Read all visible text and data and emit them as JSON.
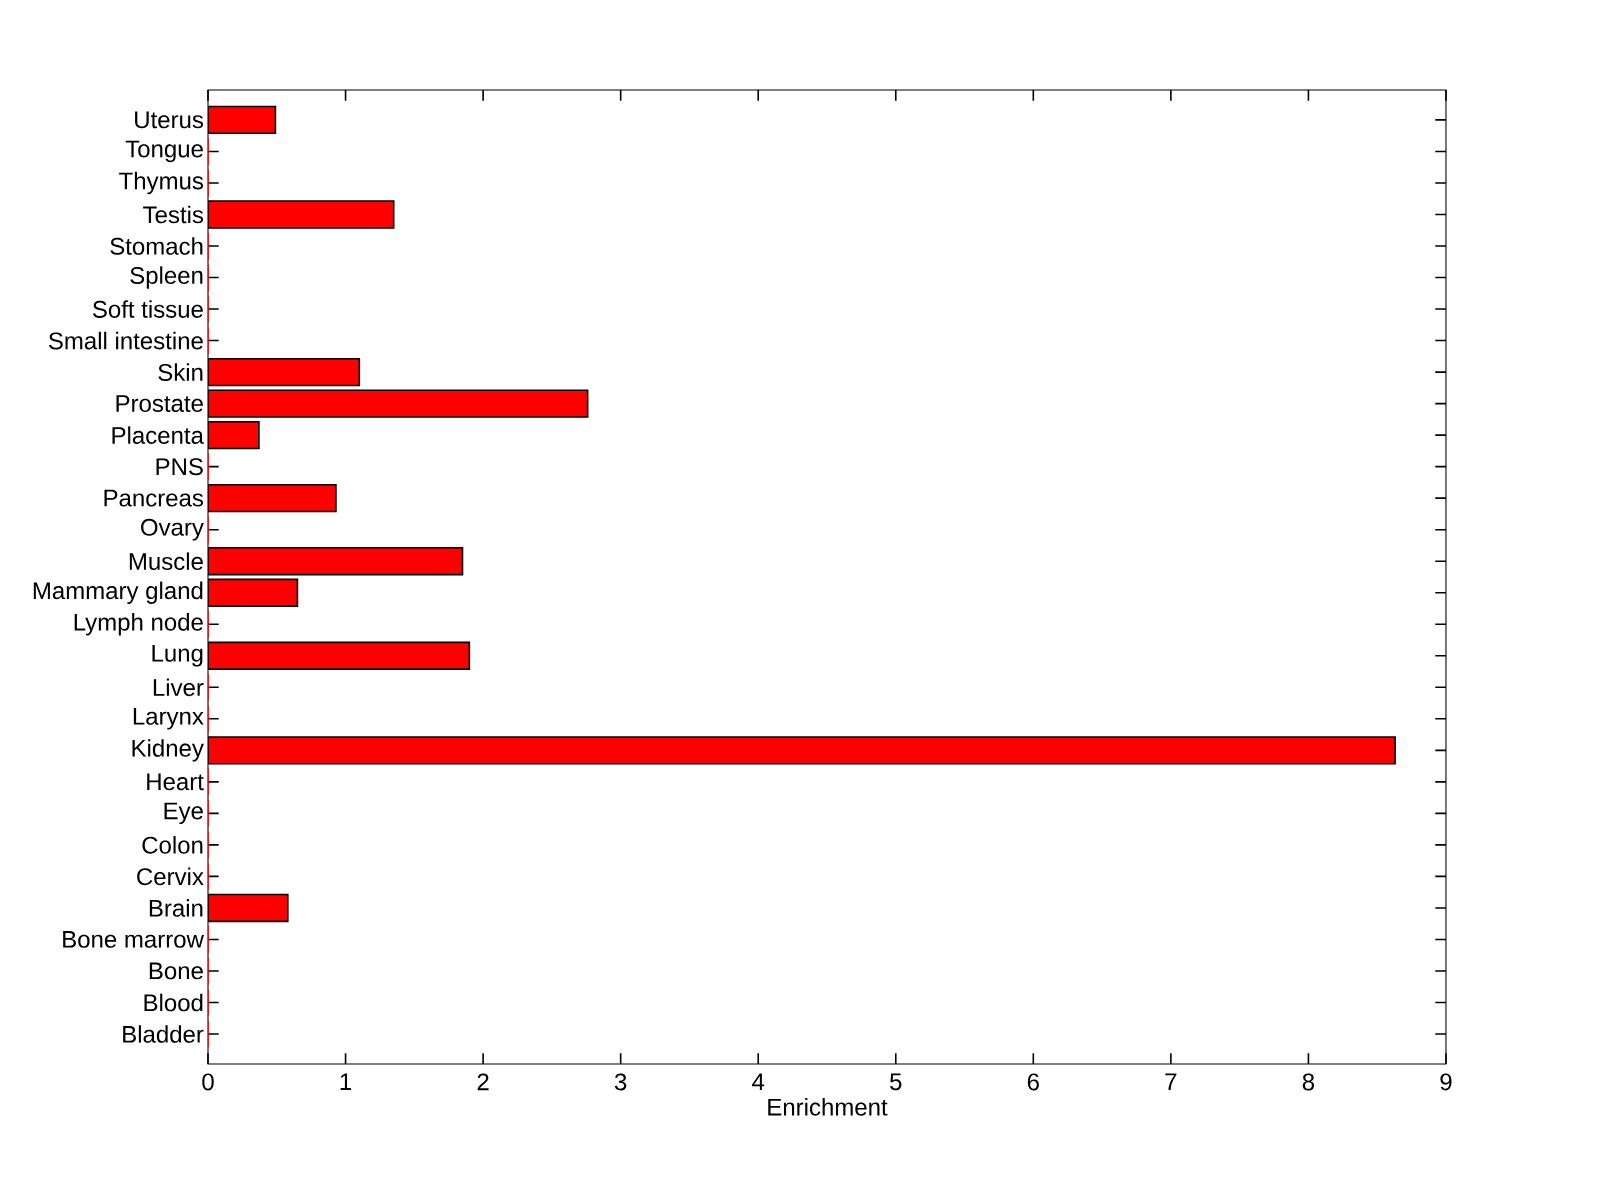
{
  "chart_data": {
    "type": "bar",
    "orientation": "horizontal",
    "xlabel": "Enrichment",
    "color": "#ff0000",
    "categories": [
      "Uterus",
      "Tongue",
      "Thymus",
      "Testis",
      "Stomach",
      "Spleen",
      "Soft tissue",
      "Small intestine",
      "Skin",
      "Prostate",
      "Placenta",
      "PNS",
      "Pancreas",
      "Ovary",
      "Muscle",
      "Mammary gland",
      "Lymph node",
      "Lung",
      "Liver",
      "Larynx",
      "Kidney",
      "Heart",
      "Eye",
      "Colon",
      "Cervix",
      "Brain",
      "Bone marrow",
      "Bone",
      "Blood",
      "Bladder"
    ],
    "values": [
      0.49,
      0,
      0,
      1.35,
      0,
      0,
      0,
      0,
      1.1,
      2.76,
      0.37,
      0,
      0.93,
      0,
      1.85,
      0.65,
      0,
      1.9,
      0,
      0,
      8.63,
      0,
      0,
      0,
      0,
      0.58,
      0,
      0,
      0,
      0
    ],
    "xlim": [
      0,
      9
    ],
    "xticks": [
      0,
      1,
      2,
      3,
      4,
      5,
      6,
      7,
      8,
      9
    ],
    "grid": false
  }
}
